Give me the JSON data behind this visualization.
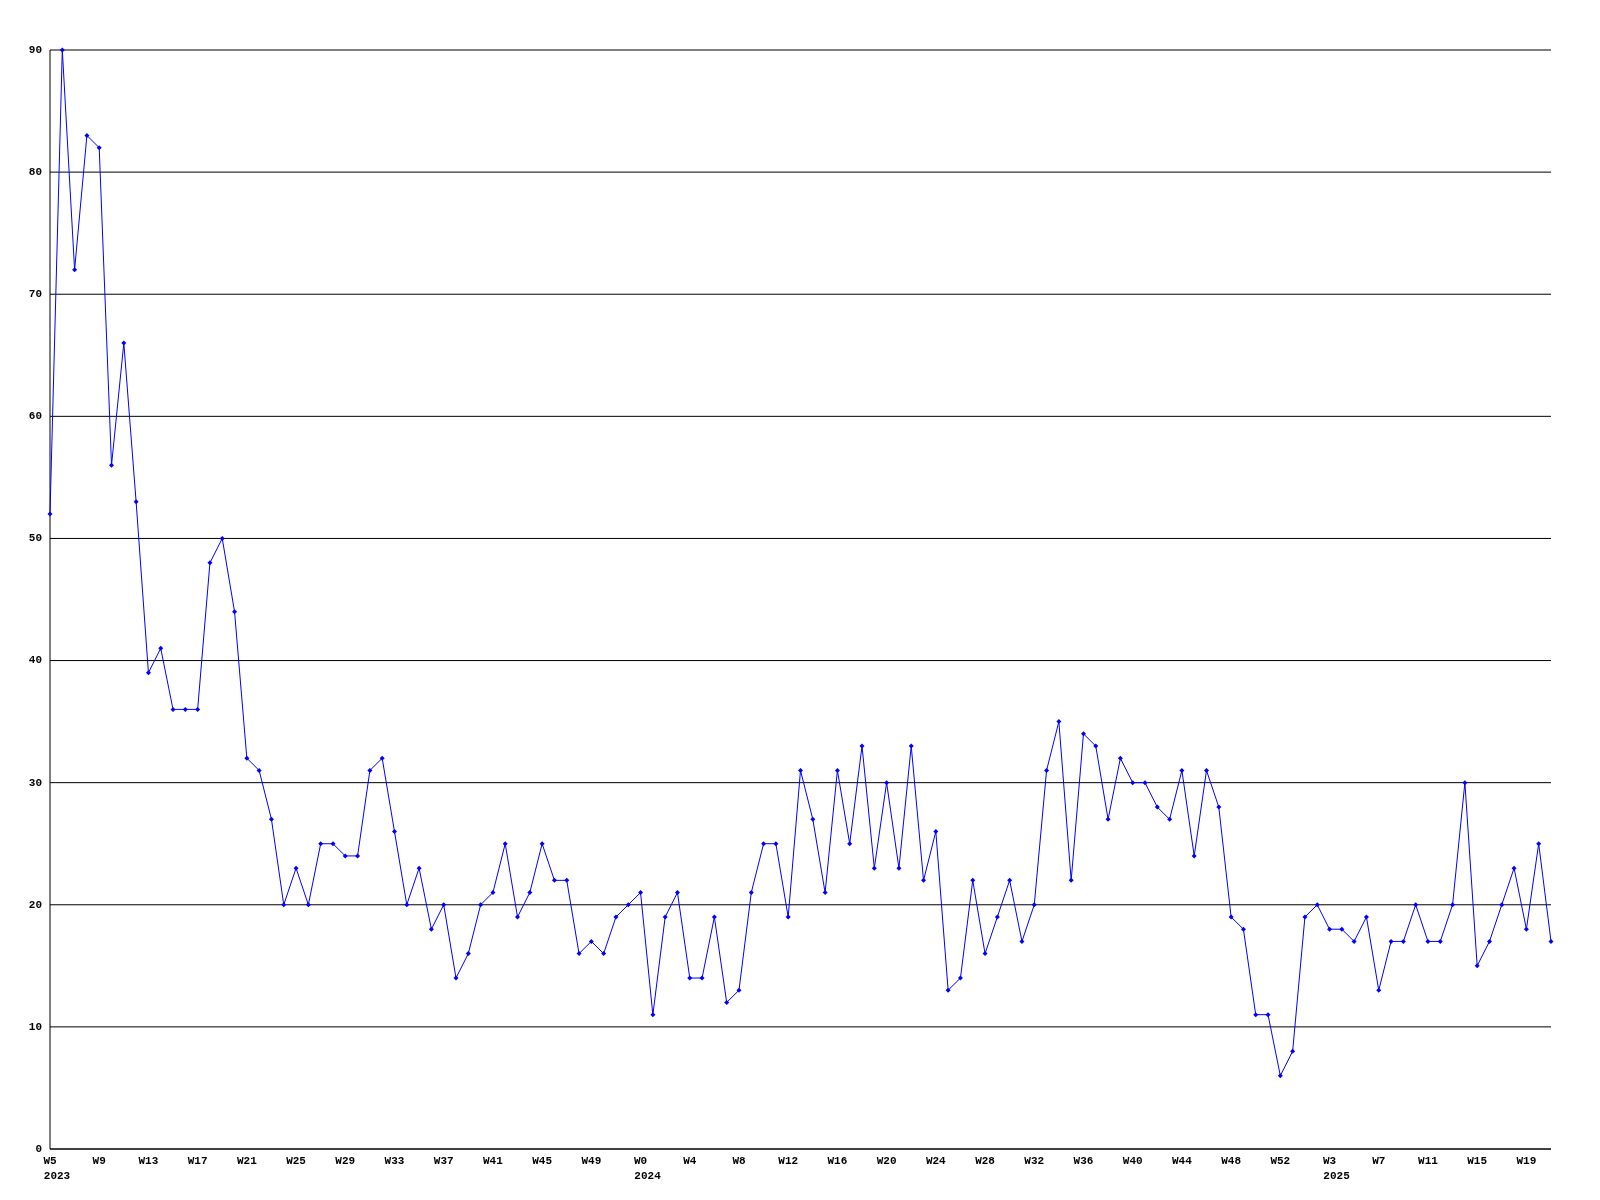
{
  "chart_data": {
    "type": "line",
    "categories": [
      "W5",
      null,
      null,
      null,
      "W9",
      null,
      null,
      null,
      "W13",
      null,
      null,
      null,
      "W17",
      null,
      null,
      null,
      "W21",
      null,
      null,
      null,
      "W25",
      null,
      null,
      null,
      "W29",
      null,
      null,
      null,
      "W33",
      null,
      null,
      null,
      "W37",
      null,
      null,
      null,
      "W41",
      null,
      null,
      null,
      "W45",
      null,
      null,
      null,
      "W49",
      null,
      null,
      null,
      "W0",
      null,
      null,
      null,
      "W4",
      null,
      null,
      null,
      "W8",
      null,
      null,
      null,
      "W12",
      null,
      null,
      null,
      "W16",
      null,
      null,
      null,
      "W20",
      null,
      null,
      null,
      "W24",
      null,
      null,
      null,
      "W28",
      null,
      null,
      null,
      "W32",
      null,
      null,
      null,
      "W36",
      null,
      null,
      null,
      "W40",
      null,
      null,
      null,
      "W44",
      null,
      null,
      null,
      "W48",
      null,
      null,
      null,
      "W52",
      null,
      null,
      null,
      "W3",
      null,
      null,
      null,
      "W7",
      null,
      null,
      null,
      "W11",
      null,
      null,
      null,
      "W15",
      null,
      null,
      null,
      "W19",
      null,
      null
    ],
    "series": [
      {
        "color": "#0000ff",
        "values": [
          52,
          90,
          72,
          83,
          82,
          56,
          66,
          53,
          39,
          41,
          36,
          36,
          36,
          48,
          50,
          44,
          32,
          31,
          27,
          20,
          23,
          20,
          25,
          25,
          24,
          24,
          31,
          32,
          26,
          20,
          23,
          18,
          20,
          14,
          16,
          20,
          21,
          25,
          19,
          21,
          25,
          22,
          22,
          16,
          17,
          16,
          19,
          20,
          21,
          11,
          19,
          21,
          14,
          14,
          19,
          12,
          13,
          21,
          25,
          25,
          19,
          31,
          27,
          21,
          31,
          25,
          33,
          23,
          30,
          23,
          33,
          22,
          26,
          13,
          14,
          22,
          16,
          19,
          22,
          17,
          20,
          31,
          35,
          22,
          34,
          33,
          27,
          32,
          30,
          30,
          28,
          27,
          31,
          24,
          31,
          28,
          19,
          18,
          11,
          11,
          6,
          8,
          19,
          20,
          18,
          18,
          17,
          19,
          13,
          17,
          17,
          20,
          17,
          17,
          20,
          30,
          15,
          17,
          20,
          23,
          18,
          25,
          17
        ]
      }
    ],
    "ylim": [
      0,
      90
    ],
    "yticks": [
      0,
      10,
      20,
      30,
      40,
      50,
      60,
      70,
      80,
      90
    ],
    "grid": "y",
    "marker": "diamond",
    "line_style": "solid",
    "annotations": [
      "2023",
      "2024",
      "2025"
    ]
  }
}
